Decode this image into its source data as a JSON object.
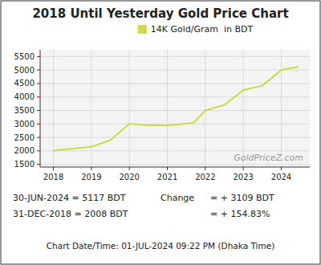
{
  "chart_data": {
    "type": "line",
    "title": "2018 Until Yesterday Gold Price Chart",
    "x": [
      2018.0,
      2018.5,
      2019.0,
      2019.5,
      2020.0,
      2020.5,
      2021.0,
      2021.3,
      2021.7,
      2022.0,
      2022.5,
      2023.0,
      2023.5,
      2024.0,
      2024.45
    ],
    "series": [
      {
        "name": "14K Gold/Gram  in BDT",
        "color": "#ccdd44",
        "values": [
          2008,
          2080,
          2150,
          2400,
          3000,
          2950,
          2950,
          2980,
          3050,
          3500,
          3700,
          4250,
          4420,
          5000,
          5117
        ]
      }
    ],
    "xlim": [
      2017.65,
      2024.75
    ],
    "ylim": [
      1400,
      5750
    ],
    "xticks": [
      2018,
      2019,
      2020,
      2021,
      2022,
      2023,
      2024
    ],
    "yticks": [
      1500,
      2000,
      2500,
      3000,
      3500,
      4000,
      4500,
      5000,
      5500
    ],
    "grid": true,
    "legend": "upper center",
    "annotations": [
      "GoldPriceZ.com",
      "30-JUN-2024 = 5117 BDT",
      "31-DEC-2018 = 2008 BDT",
      "Change",
      "= + 3109 BDT",
      "= + 154.83%",
      "Chart Date/Time: 01-JUL-2024 09:22 PM (Dhaka Time)"
    ]
  }
}
